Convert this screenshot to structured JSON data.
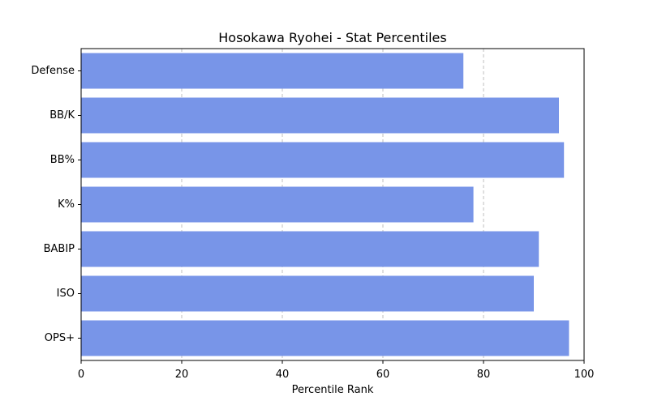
{
  "chart_data": {
    "type": "bar",
    "orientation": "horizontal",
    "title": "Hosokawa Ryohei - Stat Percentiles",
    "xlabel": "Percentile Rank",
    "ylabel": "",
    "categories": [
      "OPS+",
      "ISO",
      "BABIP",
      "K%",
      "BB%",
      "BB/K",
      "Defense"
    ],
    "values": [
      97,
      90,
      91,
      78,
      96,
      95,
      76
    ],
    "xlim": [
      0,
      100
    ],
    "xticks": [
      0,
      20,
      40,
      60,
      80,
      100
    ],
    "grid": "x-dashed",
    "bar_color": "#7895e8"
  }
}
